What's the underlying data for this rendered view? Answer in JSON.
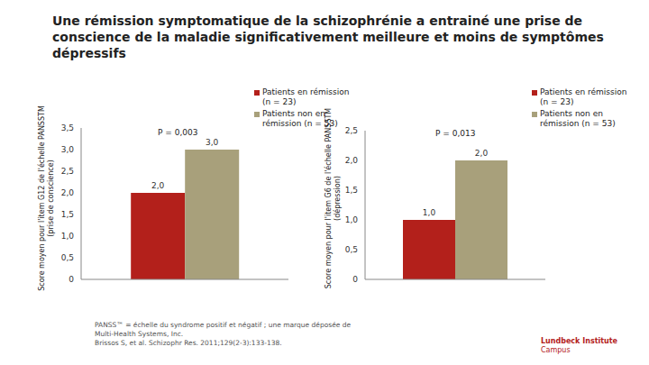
{
  "title": "Une rémission symptomatique de la schizophrénie a entrainé une prise de conscience de la maladie significativement meilleure et moins de symptômes dépressifs",
  "chart_data": [
    {
      "type": "bar",
      "categories": [
        null
      ],
      "ylabel": "Score moyen pour l'item G12 de l'échelle PANSSTM (prise de conscience)",
      "annotation": "P = 0,003",
      "series": [
        {
          "name": "Patients en rémission (n = 23)",
          "color": "#b3201b",
          "values": [
            2.0
          ],
          "value_labels": [
            "2,0"
          ]
        },
        {
          "name": "Patients non en rémission (n = 53)",
          "color": "#a8a07b",
          "values": [
            3.0
          ],
          "value_labels": [
            "3,0"
          ]
        }
      ],
      "ylim": [
        0,
        3.5
      ],
      "yticks": [
        0,
        {
          "value": 0.5,
          "label": "0,5"
        },
        {
          "value": 1,
          "label": "1,0"
        },
        {
          "value": 1.5,
          "label": "1,5"
        },
        {
          "value": 2,
          "label": "2,0"
        },
        {
          "value": 2.5,
          "label": "2,5"
        },
        {
          "value": 3,
          "label": "3,0"
        },
        {
          "value": 3.5,
          "label": "3,5"
        }
      ],
      "data_labels": true,
      "legend": "upper right",
      "grid": false
    },
    {
      "type": "bar",
      "categories": [
        null
      ],
      "ylabel": "Score moyen pour l'item G6 de l'échelle PANSSTM (dépression)",
      "annotation": "P = 0,013",
      "series": [
        {
          "name": "Patients en rémission (n = 23)",
          "color": "#b3201b",
          "values": [
            1.0
          ],
          "value_labels": [
            "1,0"
          ]
        },
        {
          "name": "Patients non en rémission (n = 53)",
          "color": "#a8a07b",
          "values": [
            2.0
          ],
          "value_labels": [
            "2,0"
          ]
        }
      ],
      "ylim": [
        0,
        2.5
      ],
      "yticks": [
        0,
        {
          "value": 0.5,
          "label": "0,5"
        },
        {
          "value": 1,
          "label": "1,0"
        },
        {
          "value": 1.5,
          "label": "1,5"
        },
        {
          "value": 2,
          "label": "2,0"
        },
        {
          "value": 2.5,
          "label": "2,5"
        }
      ],
      "data_labels": true,
      "legend": "upper right",
      "grid": false
    }
  ],
  "footnotes": [
    "PANSS™ = échelle du syndrome positif et négatif ; une marque déposée de Multi-Health Systems, Inc.",
    "Brissos S, et al. Schizophr Res. 2011;129(2-3):133-138."
  ],
  "logo": [
    "Lundbeck Institute",
    "Campus"
  ]
}
